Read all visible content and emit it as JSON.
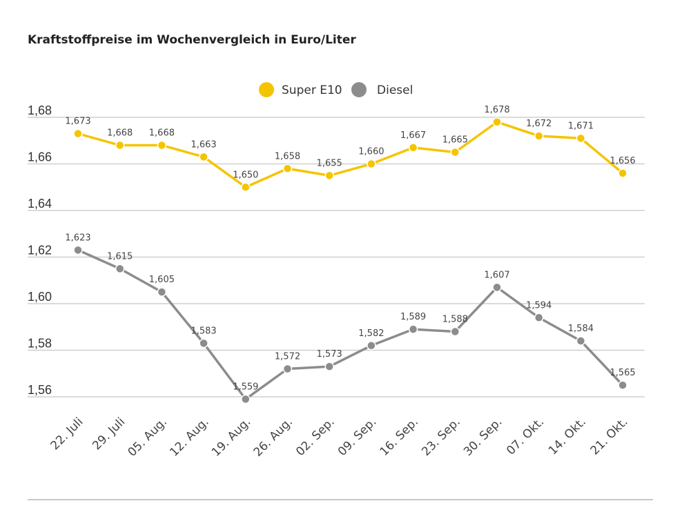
{
  "chart_data": {
    "type": "line",
    "title": "Kraftstoffpreise im Wochenvergleich in Euro/Liter",
    "categories": [
      "22. Juli",
      "29. Juli",
      "05. Aug.",
      "12. Aug.",
      "19. Aug.",
      "26. Aug.",
      "02. Sep.",
      "09. Sep.",
      "16. Sep.",
      "23. Sep.",
      "30. Sep.",
      "07. Okt.",
      "14. Okt.",
      "21. Okt."
    ],
    "series": [
      {
        "name": "Super E10",
        "color": "#f5c400",
        "values": [
          1.673,
          1.668,
          1.668,
          1.663,
          1.65,
          1.658,
          1.655,
          1.66,
          1.667,
          1.665,
          1.678,
          1.672,
          1.671,
          1.656
        ],
        "labels": [
          "1,673",
          "1,668",
          "1,668",
          "1,663",
          "1,650",
          "1,658",
          "1,655",
          "1,660",
          "1,667",
          "1,665",
          "1,678",
          "1,672",
          "1,671",
          "1,656"
        ]
      },
      {
        "name": "Diesel",
        "color": "#8c8c8c",
        "values": [
          1.623,
          1.615,
          1.605,
          1.583,
          1.559,
          1.572,
          1.573,
          1.582,
          1.589,
          1.588,
          1.607,
          1.594,
          1.584,
          1.565
        ],
        "labels": [
          "1,623",
          "1,615",
          "1,605",
          "1,583",
          "1,559",
          "1,572",
          "1,573",
          "1,582",
          "1,589",
          "1,588",
          "1,607",
          "1,594",
          "1,584",
          "1,565"
        ]
      }
    ],
    "yticks": [
      1.56,
      1.58,
      1.6,
      1.62,
      1.64,
      1.66,
      1.68
    ],
    "ytick_labels": [
      "1,56",
      "1,58",
      "1,60",
      "1,62",
      "1,64",
      "1,66",
      "1,68"
    ],
    "ylim": [
      1.56,
      1.68
    ],
    "grid": true,
    "legend": "top-center"
  }
}
